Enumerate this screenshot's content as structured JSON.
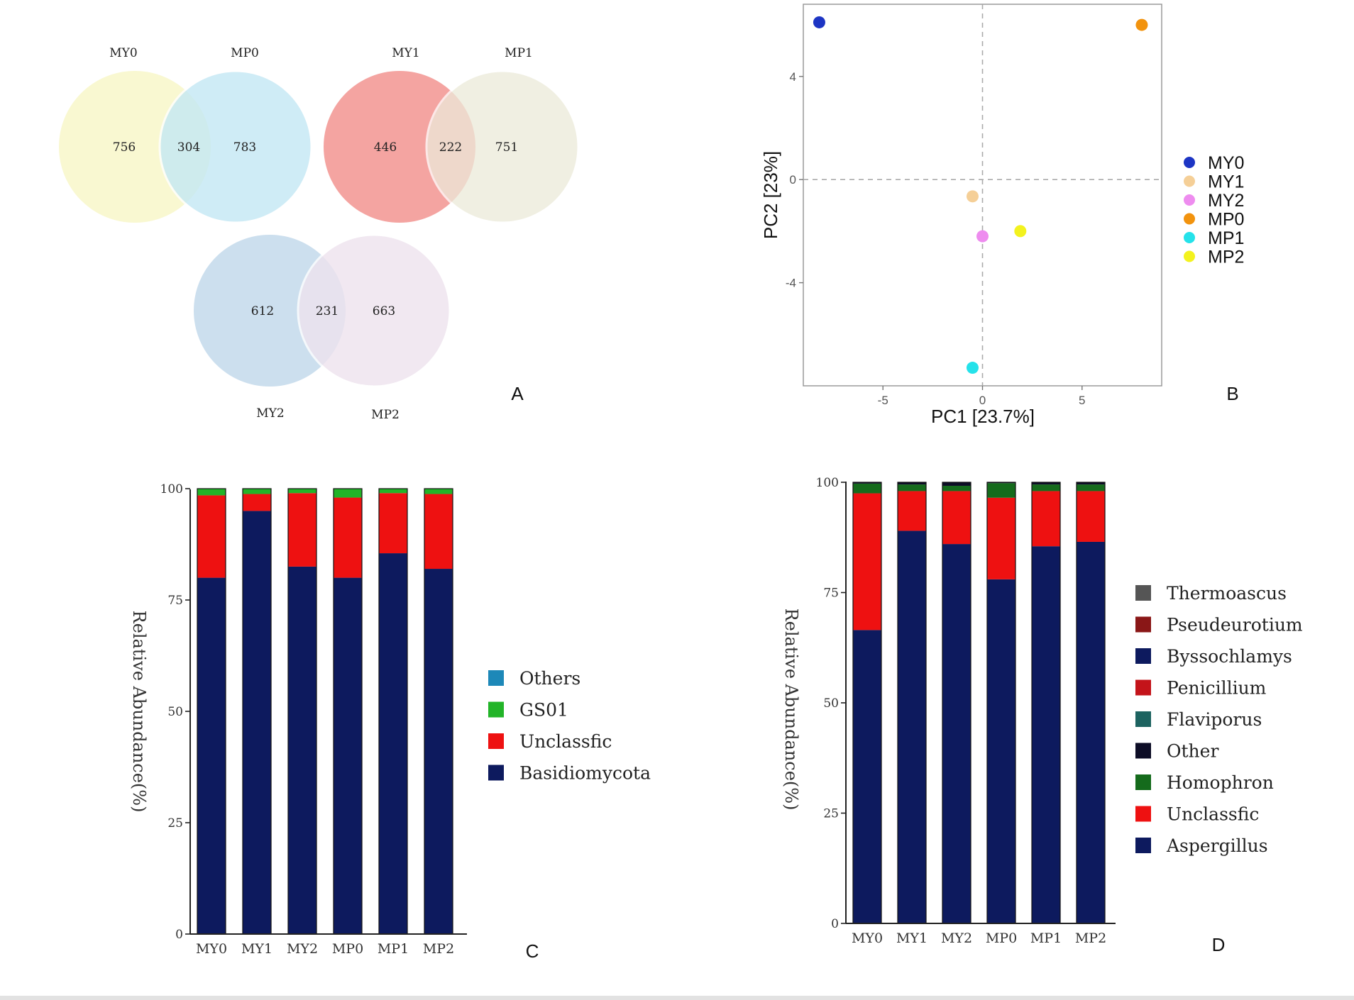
{
  "figure": {
    "panel_labels": [
      "A",
      "B",
      "C",
      "D"
    ]
  },
  "chart_data": [
    {
      "type": "venn",
      "panel": "A",
      "pairs": [
        {
          "left": "MY0",
          "right": "MP0",
          "left_only": 756,
          "shared": 304,
          "right_only": 783,
          "left_color": "#f8f7c9",
          "right_color": "#c4e8f4"
        },
        {
          "left": "MY1",
          "right": "MP1",
          "left_only": 446,
          "shared": 222,
          "right_only": 751,
          "left_color": "#f39a97",
          "right_color": "#ecead9"
        },
        {
          "left": "MY2",
          "right": "MP2",
          "left_only": 612,
          "shared": 231,
          "right_only": 663,
          "left_color": "#c7dbec",
          "right_color": "#eee3ee"
        }
      ]
    },
    {
      "type": "scatter",
      "panel": "B",
      "xlabel": "PC1 [23.7%]",
      "ylabel": "PC2 [23%]",
      "xlim": [
        -9,
        9
      ],
      "ylim": [
        -8,
        6.8
      ],
      "xticks": [
        -5,
        0,
        5
      ],
      "yticks": [
        -4,
        0,
        4
      ],
      "points": [
        {
          "name": "MY0",
          "x": -8.2,
          "y": 6.1,
          "color": "#1d35c4"
        },
        {
          "name": "MY1",
          "x": -0.5,
          "y": -0.65,
          "color": "#f5cf97"
        },
        {
          "name": "MY2",
          "x": 0.0,
          "y": -2.2,
          "color": "#ee8cef"
        },
        {
          "name": "MP0",
          "x": 8.0,
          "y": 6.0,
          "color": "#f2930e"
        },
        {
          "name": "MP1",
          "x": -0.5,
          "y": -7.3,
          "color": "#25e2ea"
        },
        {
          "name": "MP2",
          "x": 1.9,
          "y": -2.0,
          "color": "#f3f21e"
        }
      ]
    },
    {
      "type": "bar",
      "stacked": true,
      "panel": "C",
      "ylabel": "Relative Abundance(%)",
      "ylim": [
        0,
        100
      ],
      "yticks": [
        0,
        25,
        50,
        75,
        100
      ],
      "categories": [
        "MY0",
        "MY1",
        "MY2",
        "MP0",
        "MP1",
        "MP2"
      ],
      "series": [
        {
          "name": "Basidiomycota",
          "color": "#0d1a5e",
          "values": [
            80,
            95,
            82.5,
            80,
            85.5,
            82
          ]
        },
        {
          "name": "Unclassfic",
          "color": "#ee1111",
          "values": [
            18.5,
            3.8,
            16.5,
            18,
            13.5,
            16.8
          ]
        },
        {
          "name": "GS01",
          "color": "#22b428",
          "values": [
            1.5,
            1.2,
            1.0,
            2.0,
            1.0,
            1.2
          ]
        },
        {
          "name": "Others",
          "color": "#1d88b8",
          "values": [
            0,
            0,
            0,
            0,
            0,
            0
          ]
        }
      ],
      "legend": [
        "Others",
        "GS01",
        "Unclassfic",
        "Basidiomycota"
      ]
    },
    {
      "type": "bar",
      "stacked": true,
      "panel": "D",
      "ylabel": "Relative Abundance(%)",
      "ylim": [
        0,
        100
      ],
      "yticks": [
        0,
        25,
        50,
        75,
        100
      ],
      "categories": [
        "MY0",
        "MY1",
        "MY2",
        "MP0",
        "MP1",
        "MP2"
      ],
      "series": [
        {
          "name": "Aspergillus",
          "color": "#0d1a5e",
          "values": [
            66.5,
            89,
            86,
            78,
            85.5,
            86.5
          ]
        },
        {
          "name": "Unclassfic",
          "color": "#ee1111",
          "values": [
            31,
            9,
            12,
            18.5,
            12.5,
            11.5
          ]
        },
        {
          "name": "Homophron",
          "color": "#156b1c",
          "values": [
            2.2,
            1.5,
            1.2,
            3.3,
            1.5,
            1.5
          ]
        },
        {
          "name": "Other",
          "color": "#0d0d26",
          "values": [
            0.3,
            0.5,
            0.8,
            0.2,
            0.5,
            0.5
          ]
        }
      ],
      "legend": [
        "Thermoascus",
        "Pseudeurotium",
        "Byssochlamys",
        "Penicillium",
        "Flaviporus",
        "Other",
        "Homophron",
        "Unclassfic",
        "Aspergillus"
      ],
      "legend_colors": [
        "#555555",
        "#8a1717",
        "#0d1a5e",
        "#c4141a",
        "#1d6360",
        "#0d0d26",
        "#156b1c",
        "#ee1111",
        "#0d1a5e"
      ]
    }
  ]
}
